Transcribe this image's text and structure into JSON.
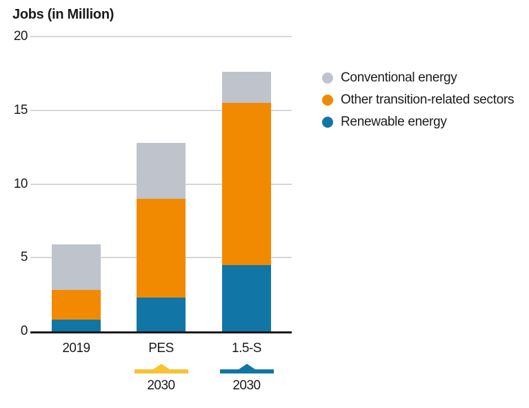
{
  "chart_data": {
    "type": "bar",
    "stacked": true,
    "title": "Jobs (in Million)",
    "categories": [
      "2019",
      "PES",
      "1.5-S"
    ],
    "series": [
      {
        "name": "Renewable energy",
        "color": "#1176A5",
        "values": [
          0.8,
          2.3,
          4.5
        ]
      },
      {
        "name": "Other transition-related sectors",
        "color": "#F18A00",
        "values": [
          2.0,
          6.7,
          11.0
        ]
      },
      {
        "name": "Conventional energy",
        "color": "#BEC3CC",
        "values": [
          3.1,
          3.8,
          2.1
        ]
      }
    ],
    "totals": [
      5.9,
      12.8,
      17.6
    ],
    "ylim": [
      0,
      20
    ],
    "yticks": [
      0,
      5,
      10,
      15,
      20
    ],
    "grid": true,
    "legend_position": "right",
    "legend": [
      {
        "label": "Conventional energy",
        "color": "#BEC3CC"
      },
      {
        "label": "Other transition-related sectors",
        "color": "#F18A00"
      },
      {
        "label": "Renewable energy",
        "color": "#1176A5"
      }
    ],
    "year_groups": [
      {
        "category": "PES",
        "label": "2030",
        "color": "#F7C331"
      },
      {
        "category": "1.5-S",
        "label": "2030",
        "color": "#1176A5"
      }
    ],
    "colors": {
      "axis_line": "#1a1a1a",
      "gridline": "#d6d6d6",
      "text": "#1a1a1a"
    }
  }
}
